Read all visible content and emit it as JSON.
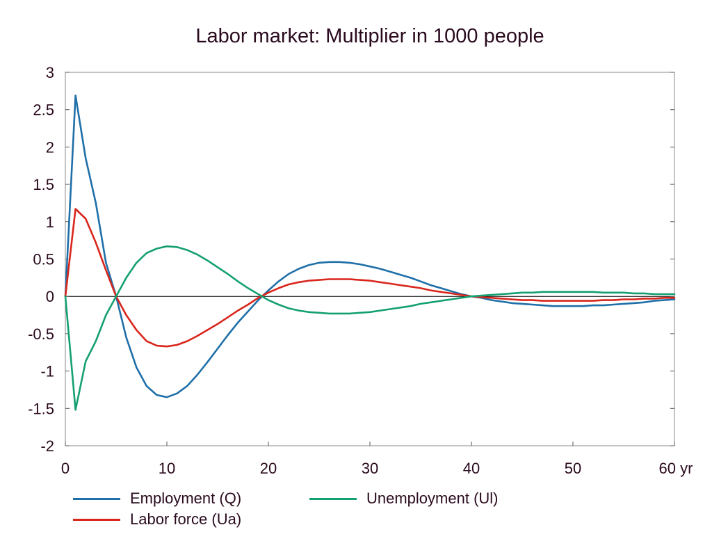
{
  "chart_data": {
    "type": "line",
    "title": "Labor market: Multiplier in 1000 people",
    "xlabel": "",
    "ylabel": "",
    "xlim": [
      0,
      60
    ],
    "ylim": [
      -2,
      3
    ],
    "x_ticks": [
      0,
      10,
      20,
      30,
      40,
      50,
      60
    ],
    "x_tick_labels": [
      "0",
      "10",
      "20",
      "30",
      "40",
      "50",
      "60 yr"
    ],
    "y_ticks": [
      -2,
      -1.5,
      -1,
      -0.5,
      0,
      0.5,
      1,
      1.5,
      2,
      2.5,
      3
    ],
    "y_tick_labels": [
      "-2",
      "-1.5",
      "-1",
      "-0.5",
      "0",
      "0.5",
      "1",
      "1.5",
      "2",
      "2.5",
      "3"
    ],
    "grid": false,
    "legend_position": "bottom",
    "x": [
      0,
      1,
      2,
      3,
      4,
      5,
      6,
      7,
      8,
      9,
      10,
      11,
      12,
      13,
      14,
      15,
      16,
      17,
      18,
      19,
      20,
      21,
      22,
      23,
      24,
      25,
      26,
      27,
      28,
      29,
      30,
      31,
      32,
      33,
      34,
      35,
      36,
      37,
      38,
      39,
      40,
      41,
      42,
      43,
      44,
      45,
      46,
      47,
      48,
      49,
      50,
      51,
      52,
      53,
      54,
      55,
      56,
      57,
      58,
      59,
      60
    ],
    "series": [
      {
        "name": "Employment (Q)",
        "color": "#1f6fa8",
        "values": [
          0,
          2.69,
          1.85,
          1.25,
          0.45,
          0.0,
          -0.55,
          -0.95,
          -1.2,
          -1.32,
          -1.35,
          -1.3,
          -1.2,
          -1.05,
          -0.88,
          -0.7,
          -0.52,
          -0.35,
          -0.2,
          -0.05,
          0.08,
          0.2,
          0.3,
          0.37,
          0.42,
          0.45,
          0.46,
          0.46,
          0.45,
          0.43,
          0.4,
          0.37,
          0.33,
          0.29,
          0.25,
          0.2,
          0.15,
          0.11,
          0.07,
          0.03,
          0.0,
          -0.02,
          -0.05,
          -0.07,
          -0.09,
          -0.1,
          -0.11,
          -0.12,
          -0.13,
          -0.13,
          -0.13,
          -0.13,
          -0.12,
          -0.12,
          -0.11,
          -0.1,
          -0.09,
          -0.08,
          -0.06,
          -0.05,
          -0.04
        ]
      },
      {
        "name": "Labor force (Ua)",
        "color": "#d9261c",
        "values": [
          0,
          1.17,
          1.04,
          0.72,
          0.35,
          0.0,
          -0.25,
          -0.45,
          -0.6,
          -0.66,
          -0.67,
          -0.65,
          -0.6,
          -0.53,
          -0.45,
          -0.37,
          -0.28,
          -0.19,
          -0.11,
          -0.02,
          0.05,
          0.11,
          0.16,
          0.19,
          0.21,
          0.22,
          0.23,
          0.23,
          0.23,
          0.22,
          0.21,
          0.19,
          0.17,
          0.15,
          0.13,
          0.11,
          0.08,
          0.06,
          0.04,
          0.02,
          0.0,
          -0.01,
          -0.02,
          -0.03,
          -0.04,
          -0.05,
          -0.05,
          -0.06,
          -0.06,
          -0.06,
          -0.06,
          -0.06,
          -0.06,
          -0.05,
          -0.05,
          -0.04,
          -0.04,
          -0.03,
          -0.03,
          -0.02,
          -0.02
        ]
      },
      {
        "name": "Unemployment (Ul)",
        "color": "#14a06f",
        "values": [
          0,
          -1.52,
          -0.87,
          -0.6,
          -0.25,
          0.0,
          0.25,
          0.45,
          0.58,
          0.64,
          0.67,
          0.66,
          0.62,
          0.56,
          0.48,
          0.39,
          0.3,
          0.2,
          0.11,
          0.03,
          -0.05,
          -0.11,
          -0.16,
          -0.19,
          -0.21,
          -0.22,
          -0.23,
          -0.23,
          -0.23,
          -0.22,
          -0.21,
          -0.19,
          -0.17,
          -0.15,
          -0.13,
          -0.1,
          -0.08,
          -0.06,
          -0.04,
          -0.02,
          0.0,
          0.01,
          0.02,
          0.03,
          0.04,
          0.05,
          0.05,
          0.06,
          0.06,
          0.06,
          0.06,
          0.06,
          0.06,
          0.05,
          0.05,
          0.05,
          0.04,
          0.04,
          0.03,
          0.03,
          0.03
        ]
      }
    ]
  }
}
